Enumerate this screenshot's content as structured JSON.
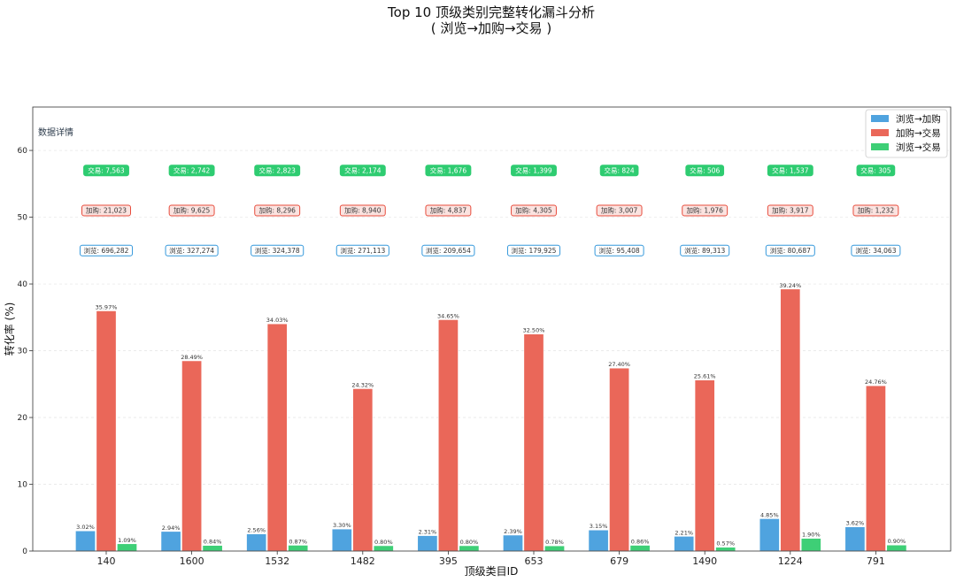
{
  "chart_data": {
    "type": "bar",
    "title": "Top 10 顶级类别完整转化漏斗分析",
    "subtitle": "( 浏览→加购→交易 )",
    "xlabel": "顶级类目ID",
    "ylabel": "转化率 (%)",
    "ylim": [
      0,
      66.5
    ],
    "yticks": [
      0,
      10,
      20,
      30,
      40,
      50,
      60
    ],
    "grid": true,
    "legend_position": "top-right",
    "annotation_title": "数据详情",
    "categories": [
      "140",
      "1600",
      "1532",
      "1482",
      "395",
      "653",
      "679",
      "1490",
      "1224",
      "791"
    ],
    "series": [
      {
        "name": "浏览→加购",
        "color": "#4fa3df",
        "values": [
          3.02,
          2.94,
          2.56,
          3.3,
          2.31,
          2.39,
          3.15,
          2.21,
          4.85,
          3.62
        ],
        "labels": [
          "3.02%",
          "2.94%",
          "2.56%",
          "3.30%",
          "2.31%",
          "2.39%",
          "3.15%",
          "2.21%",
          "4.85%",
          "3.62%"
        ]
      },
      {
        "name": "加购→交易",
        "color": "#ea6759",
        "values": [
          35.97,
          28.49,
          34.03,
          24.32,
          34.65,
          32.5,
          27.4,
          25.61,
          39.24,
          24.76
        ],
        "labels": [
          "35.97%",
          "28.49%",
          "34.03%",
          "24.32%",
          "34.65%",
          "32.50%",
          "27.40%",
          "25.61%",
          "39.24%",
          "24.76%"
        ]
      },
      {
        "name": "浏览→交易",
        "color": "#3ecf76",
        "values": [
          1.09,
          0.84,
          0.87,
          0.8,
          0.8,
          0.78,
          0.86,
          0.57,
          1.9,
          0.9
        ],
        "labels": [
          "1.09%",
          "0.84%",
          "0.87%",
          "0.80%",
          "0.80%",
          "0.78%",
          "0.86%",
          "0.57%",
          "1.90%",
          "0.90%"
        ]
      }
    ],
    "detail_rows": [
      {
        "prefix": "交易",
        "y": 57,
        "stroke": "#2ecc71",
        "fill": "#2ecc71",
        "text_color": "#ffffff",
        "values": [
          "7,563",
          "2,742",
          "2,823",
          "2,174",
          "1,676",
          "1,399",
          "824",
          "506",
          "1,537",
          "305"
        ]
      },
      {
        "prefix": "加购",
        "y": 51,
        "stroke": "#e74c3c",
        "fill": "#fbe3e0",
        "text_color": "#333333",
        "values": [
          "21,023",
          "9,625",
          "8,296",
          "8,940",
          "4,837",
          "4,305",
          "3,007",
          "1,976",
          "3,917",
          "1,232"
        ]
      },
      {
        "prefix": "浏览",
        "y": 45,
        "stroke": "#3498db",
        "fill": "#ffffff",
        "text_color": "#333333",
        "values": [
          "696,282",
          "327,274",
          "324,378",
          "271,113",
          "209,654",
          "179,925",
          "95,408",
          "89,313",
          "80,687",
          "34,063"
        ]
      }
    ]
  }
}
